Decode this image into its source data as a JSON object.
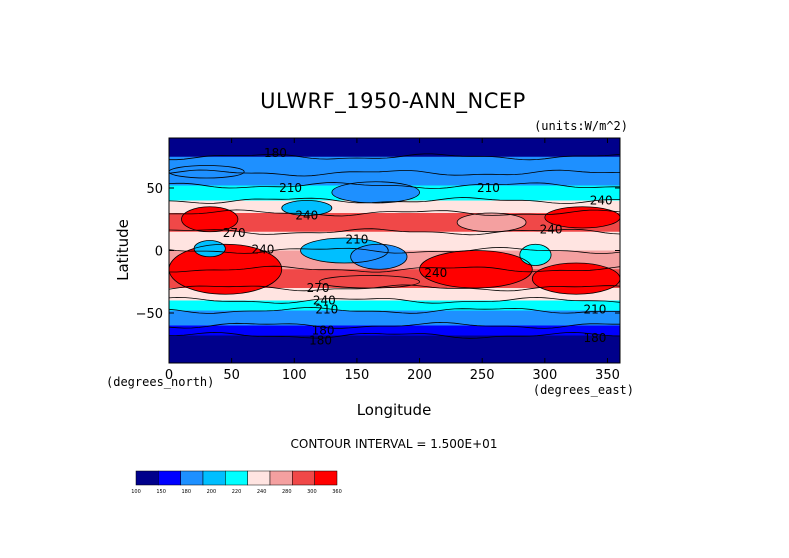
{
  "chart_data": {
    "type": "heatmap",
    "title": "ULWRF_1950-ANN_NCEP",
    "units": "(units:W/m^2)",
    "xlabel": "Longitude",
    "ylabel": "Latitude",
    "x_unit_label": "(degrees_east)",
    "y_unit_label": "(degrees_north)",
    "xlim": [
      0,
      360
    ],
    "ylim": [
      -90,
      90
    ],
    "x_ticks": [
      "0",
      "50",
      "100",
      "150",
      "200",
      "250",
      "300",
      "350"
    ],
    "x_tick_values": [
      0,
      50,
      100,
      150,
      200,
      250,
      300,
      350
    ],
    "y_ticks": [
      "50",
      "0",
      "−50"
    ],
    "y_tick_values": [
      50,
      0,
      -50
    ],
    "contour_interval": "CONTOUR INTERVAL = 1.500E+01",
    "contour_labels": [
      {
        "text": "180",
        "lon": 85,
        "lat": 78
      },
      {
        "text": "210",
        "lon": 97,
        "lat": 50
      },
      {
        "text": "210",
        "lon": 255,
        "lat": 50
      },
      {
        "text": "240",
        "lon": 110,
        "lat": 28
      },
      {
        "text": "240",
        "lon": 345,
        "lat": 40
      },
      {
        "text": "270",
        "lon": 52,
        "lat": 14
      },
      {
        "text": "240",
        "lon": 75,
        "lat": 1
      },
      {
        "text": "210",
        "lon": 150,
        "lat": 9
      },
      {
        "text": "240",
        "lon": 305,
        "lat": 17
      },
      {
        "text": "240",
        "lon": 213,
        "lat": -18
      },
      {
        "text": "270",
        "lon": 119,
        "lat": -30
      },
      {
        "text": "240",
        "lon": 124,
        "lat": -40
      },
      {
        "text": "210",
        "lon": 126,
        "lat": -47
      },
      {
        "text": "210",
        "lon": 340,
        "lat": -47
      },
      {
        "text": "180",
        "lon": 123,
        "lat": -64
      },
      {
        "text": "180",
        "lon": 121,
        "lat": -72
      },
      {
        "text": "180",
        "lon": 340,
        "lat": -70
      }
    ],
    "colorbar": {
      "colors": [
        "#00008b",
        "#0000ff",
        "#1e90ff",
        "#00bfff",
        "#00ffff",
        "#ffe4e1",
        "#f4a0a0",
        "#f04848",
        "#ff0000"
      ],
      "labels": [
        "100",
        "150",
        "180",
        "200",
        "220",
        "240",
        "280",
        "300",
        "360"
      ]
    },
    "zonal_bands": [
      {
        "lat_from": 90,
        "lat_to": 75,
        "value": 160
      },
      {
        "lat_from": 75,
        "lat_to": 62,
        "value": 195
      },
      {
        "lat_from": 62,
        "lat_to": 52,
        "value": 205
      },
      {
        "lat_from": 52,
        "lat_to": 40,
        "value": 225
      },
      {
        "lat_from": 40,
        "lat_to": 30,
        "value": 250
      },
      {
        "lat_from": 30,
        "lat_to": 15,
        "value": 275
      },
      {
        "lat_from": 15,
        "lat_to": 0,
        "value": 245
      },
      {
        "lat_from": 0,
        "lat_to": -15,
        "value": 265
      },
      {
        "lat_from": -15,
        "lat_to": -30,
        "value": 280
      },
      {
        "lat_from": -30,
        "lat_to": -40,
        "value": 250
      },
      {
        "lat_from": -40,
        "lat_to": -48,
        "value": 235
      },
      {
        "lat_from": -48,
        "lat_to": -60,
        "value": 205
      },
      {
        "lat_from": -60,
        "lat_to": -68,
        "value": 185
      },
      {
        "lat_from": -68,
        "lat_to": -90,
        "value": 150
      }
    ],
    "regions": [
      {
        "lon_from": 10,
        "lon_to": 55,
        "lat_from": 35,
        "lat_to": 15,
        "value": 285
      },
      {
        "lon_from": 300,
        "lon_to": 360,
        "lat_from": 35,
        "lat_to": 18,
        "value": 285
      },
      {
        "lon_from": 230,
        "lon_to": 285,
        "lat_from": 30,
        "lat_to": 15,
        "value": 255
      },
      {
        "lon_from": 0,
        "lon_to": 90,
        "lat_from": 5,
        "lat_to": -35,
        "value": 285
      },
      {
        "lon_from": 200,
        "lon_to": 290,
        "lat_from": 0,
        "lat_to": -30,
        "value": 290
      },
      {
        "lon_from": 290,
        "lon_to": 360,
        "lat_from": -10,
        "lat_to": -35,
        "value": 285
      },
      {
        "lon_from": 105,
        "lon_to": 175,
        "lat_from": 10,
        "lat_to": -10,
        "value": 215
      },
      {
        "lon_from": 145,
        "lon_to": 190,
        "lat_from": 5,
        "lat_to": -15,
        "value": 205
      },
      {
        "lon_from": 20,
        "lon_to": 45,
        "lat_from": 8,
        "lat_to": -5,
        "value": 220
      },
      {
        "lon_from": 280,
        "lon_to": 305,
        "lat_from": 5,
        "lat_to": -12,
        "value": 225
      },
      {
        "lon_from": 90,
        "lon_to": 130,
        "lat_from": 40,
        "lat_to": 28,
        "value": 210
      },
      {
        "lon_from": 130,
        "lon_to": 200,
        "lat_from": 55,
        "lat_to": 38,
        "value": 205
      },
      {
        "lon_from": 0,
        "lon_to": 60,
        "lat_from": 68,
        "lat_to": 58,
        "value": 195
      },
      {
        "lon_from": 120,
        "lon_to": 200,
        "lat_from": -20,
        "lat_to": -30,
        "value": 275
      }
    ]
  }
}
